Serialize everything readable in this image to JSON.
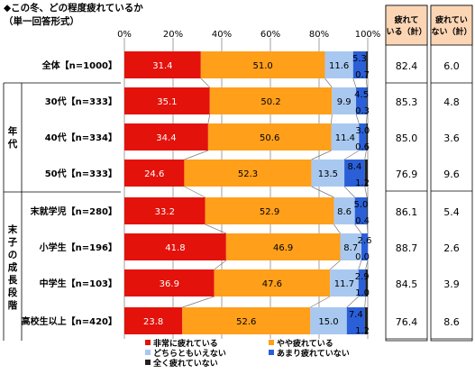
{
  "title": "◆この冬、どの程度疲れているか",
  "subtitle": "（単一回答形式）",
  "colors": {
    "s0": "#e3120b",
    "s1": "#ff9f1a",
    "s2": "#a8c8f0",
    "s3": "#2a5fd8",
    "s4": "#222222",
    "summary_bg": "#fcd5b4",
    "grid": "#888888"
  },
  "summary_headers": [
    "疲れている（計）",
    "疲れていない（計）"
  ],
  "group_labels": {
    "age": "年代",
    "child": "末子の成長段階"
  },
  "legend": [
    "非常に疲れている",
    "やや疲れている",
    "どちらともいえない",
    "あまり疲れていない",
    "全く疲れていない"
  ],
  "chart_data": {
    "type": "bar",
    "orientation": "horizontal",
    "stacked": true,
    "percent_stacked": true,
    "title": "◆この冬、どの程度疲れているか",
    "subtitle": "（単一回答形式）",
    "xlim": [
      0,
      100
    ],
    "xticks": [
      "0%",
      "20%",
      "40%",
      "60%",
      "80%",
      "100%"
    ],
    "categories": [
      "全体【n=1000】",
      "30代【n=333】",
      "40代【n=334】",
      "50代【n=333】",
      "末就学児【n=280】",
      "小学生【n=196】",
      "中学生【n=103】",
      "高校生以上【n=420】"
    ],
    "series": [
      {
        "name": "非常に疲れている",
        "values": [
          31.4,
          35.1,
          34.4,
          24.6,
          33.2,
          41.8,
          36.9,
          23.8
        ]
      },
      {
        "name": "やや疲れている",
        "values": [
          51.0,
          50.2,
          50.6,
          52.3,
          52.9,
          46.9,
          47.6,
          52.6
        ]
      },
      {
        "name": "どちらともいえない",
        "values": [
          11.6,
          9.9,
          11.4,
          13.5,
          8.6,
          8.7,
          11.7,
          15.0
        ]
      },
      {
        "name": "あまり疲れていない",
        "values": [
          5.3,
          4.5,
          3.0,
          8.4,
          5.0,
          2.6,
          2.9,
          7.4
        ]
      },
      {
        "name": "全く疲れていない",
        "values": [
          0.7,
          0.3,
          0.6,
          1.2,
          0.4,
          0.0,
          1.0,
          1.2
        ]
      }
    ],
    "value_labels": [
      [
        "31.4",
        "51.0",
        "11.6",
        "5.3",
        "0.7"
      ],
      [
        "35.1",
        "50.2",
        "9.9",
        "4.5",
        "0.3"
      ],
      [
        "34.4",
        "50.6",
        "11.4",
        "3.0",
        "0.6"
      ],
      [
        "24.6",
        "52.3",
        "13.5",
        "8.4",
        "1.2"
      ],
      [
        "33.2",
        "52.9",
        "8.6",
        "5.0",
        "0.4"
      ],
      [
        "41.8",
        "46.9",
        "8.7",
        "2.6",
        "0.0"
      ],
      [
        "36.9",
        "47.6",
        "11.7",
        "2.9",
        "1.0"
      ],
      [
        "23.8",
        "52.6",
        "15.0",
        "7.4",
        "1.2"
      ]
    ],
    "summary": {
      "tired_total": [
        "82.4",
        "85.3",
        "85.0",
        "76.9",
        "86.1",
        "88.7",
        "84.5",
        "76.4"
      ],
      "not_tired_total": [
        "6.0",
        "4.8",
        "3.6",
        "9.6",
        "5.4",
        "2.6",
        "3.9",
        "8.6"
      ]
    },
    "legend_position": "bottom",
    "grid": true
  }
}
